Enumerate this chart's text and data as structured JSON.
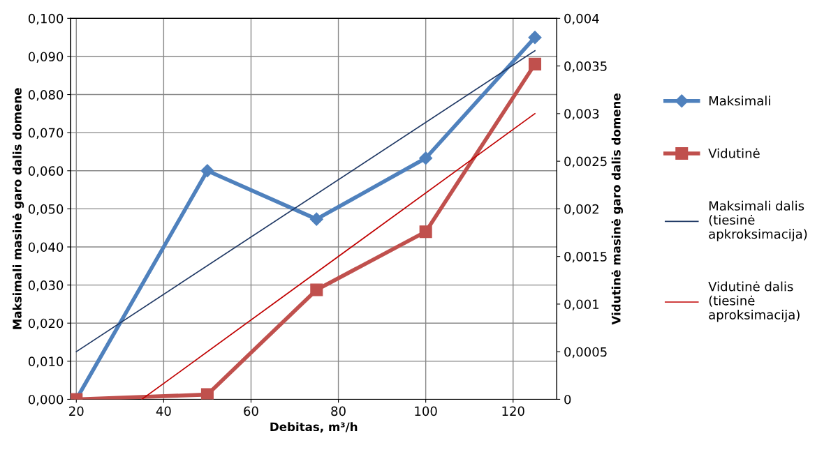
{
  "chart_data": {
    "type": "line",
    "xlabel": "Debitas, m³/h",
    "ylabel": "Maksimali masinė garo dalis domene",
    "y2label": "Vidutinė masinė garo dalis domene",
    "x": [
      20,
      50,
      75,
      100,
      125
    ],
    "series": [
      {
        "name": "Maksimali",
        "color": "#4f81bd",
        "marker": "diamond",
        "values": [
          0.0,
          0.06,
          0.0473,
          0.0633,
          0.095
        ]
      },
      {
        "name": "Vidutinė",
        "color": "#c0504d",
        "marker": "square",
        "axis": "y2",
        "values": [
          0.0,
          5e-05,
          0.00115,
          0.00176,
          0.00352
        ]
      },
      {
        "name": "Maksimali dalis (tiesinė apkroksimacija)",
        "color": "#1f3864",
        "marker": "none",
        "x": [
          20,
          125
        ],
        "values": [
          0.0125,
          0.0915
        ]
      },
      {
        "name": "Vidutinė dalis (tiesinė aproksimacija)",
        "color": "#c00000",
        "marker": "none",
        "axis": "y2",
        "x": [
          35,
          125
        ],
        "values": [
          0.0,
          0.003
        ]
      }
    ],
    "xlim": [
      18.7,
      130
    ],
    "xticks": [
      20,
      40,
      60,
      80,
      100,
      120
    ],
    "ylim": [
      0,
      0.1
    ],
    "yticks": [
      {
        "value": 0,
        "label": "0,000"
      },
      {
        "value": 0.01,
        "label": "0,010"
      },
      {
        "value": 0.02,
        "label": "0,020"
      },
      {
        "value": 0.03,
        "label": "0,030"
      },
      {
        "value": 0.04,
        "label": "0,040"
      },
      {
        "value": 0.05,
        "label": "0,050"
      },
      {
        "value": 0.06,
        "label": "0,060"
      },
      {
        "value": 0.07,
        "label": "0,070"
      },
      {
        "value": 0.08,
        "label": "0,080"
      },
      {
        "value": 0.09,
        "label": "0,090"
      },
      {
        "value": 0.1,
        "label": "0,100"
      }
    ],
    "y2lim": [
      0,
      0.004
    ],
    "y2ticks": [
      0,
      {
        "value": 0.0005,
        "label": "0,0005"
      },
      {
        "value": 0.001,
        "label": "0,001"
      },
      {
        "value": 0.0015,
        "label": "0,0015"
      },
      {
        "value": 0.002,
        "label": "0,002"
      },
      {
        "value": 0.0025,
        "label": "0,0025"
      },
      {
        "value": 0.003,
        "label": "0,003"
      },
      {
        "value": 0.0035,
        "label": "0,0035"
      },
      {
        "value": 0.004,
        "label": "0,004"
      }
    ],
    "grid": true,
    "legend": "right"
  }
}
